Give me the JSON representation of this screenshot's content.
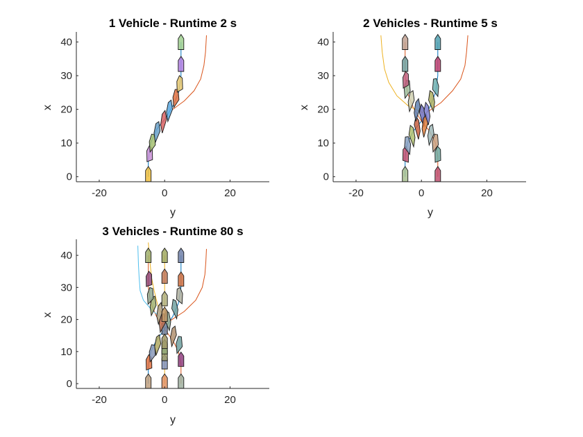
{
  "chart_data": [
    {
      "type": "line",
      "title": "1 Vehicle - Runtime 2 s",
      "xlabel": "y",
      "ylabel": "x",
      "xlim": [
        -27,
        32
      ],
      "ylim": [
        -1.5,
        43
      ],
      "xticks": [
        -20,
        0,
        20
      ],
      "yticks": [
        0,
        10,
        20,
        30,
        40
      ],
      "grid": false,
      "series": [
        {
          "color": "#0072BD",
          "points": [
            [
              -5,
              0
            ],
            [
              -5,
              5
            ],
            [
              -4.3,
              10
            ],
            [
              -2.5,
              14
            ],
            [
              0,
              17
            ],
            [
              2.5,
              21
            ],
            [
              4.3,
              25
            ],
            [
              5,
              30
            ],
            [
              5,
              35
            ],
            [
              5,
              40
            ]
          ]
        },
        {
          "color": "#D95319",
          "points": [
            [
              2.5,
              20
            ],
            [
              6,
              22.5
            ],
            [
              9,
              25.5
            ],
            [
              11,
              29
            ],
            [
              12,
              33
            ],
            [
              12.5,
              37
            ],
            [
              12.8,
              42
            ]
          ]
        }
      ],
      "vehicles": [
        {
          "y": -5,
          "x": 0.8,
          "heading": 0,
          "color": "#f0c040"
        },
        {
          "y": -4.6,
          "x": 7,
          "heading": 5,
          "color": "#c98fd6"
        },
        {
          "y": -3.8,
          "x": 10.5,
          "heading": 18,
          "color": "#a5c070"
        },
        {
          "y": -2.4,
          "x": 13.8,
          "heading": 30,
          "color": "#6aa0c8"
        },
        {
          "y": -0.4,
          "x": 16.8,
          "heading": 38,
          "color": "#d96060"
        },
        {
          "y": 1.4,
          "x": 20.1,
          "heading": 32,
          "color": "#5aa8e0"
        },
        {
          "y": 3.4,
          "x": 23.8,
          "heading": 20,
          "color": "#e07040"
        },
        {
          "y": 4.6,
          "x": 27.8,
          "heading": 8,
          "color": "#e8c870"
        },
        {
          "y": 5,
          "x": 33.5,
          "heading": 0,
          "color": "#b080e0"
        },
        {
          "y": 5,
          "x": 40,
          "heading": 0,
          "color": "#a0d090"
        }
      ]
    },
    {
      "type": "line",
      "title": "2 Vehicles - Runtime 5 s",
      "xlabel": "y",
      "ylabel": "x",
      "xlim": [
        -27,
        32
      ],
      "ylim": [
        -1.5,
        43
      ],
      "xticks": [
        -20,
        0,
        20
      ],
      "yticks": [
        0,
        10,
        20,
        30,
        40
      ],
      "grid": false,
      "series": [
        {
          "color": "#0072BD",
          "points": [
            [
              -5,
              0
            ],
            [
              -5,
              6
            ],
            [
              -4.3,
              10
            ],
            [
              -2.5,
              13.5
            ],
            [
              0,
              16.5
            ],
            [
              2.5,
              20.5
            ],
            [
              4.3,
              25
            ],
            [
              5,
              30
            ],
            [
              5,
              35
            ],
            [
              5,
              40
            ]
          ]
        },
        {
          "color": "#D95319",
          "points": [
            [
              5,
              0
            ],
            [
              5,
              6
            ],
            [
              4.3,
              10
            ],
            [
              2.5,
              13.5
            ],
            [
              0,
              16.5
            ],
            [
              -2.5,
              20.5
            ],
            [
              -4.3,
              25
            ],
            [
              -5,
              30
            ],
            [
              -5,
              35
            ],
            [
              -5,
              40
            ]
          ]
        },
        {
          "color": "#D95319",
          "points": [
            [
              1.5,
              19
            ],
            [
              6,
              22
            ],
            [
              9.5,
              25.5
            ],
            [
              12,
              29
            ],
            [
              13.3,
              33
            ],
            [
              13.8,
              37
            ],
            [
              14.2,
              42
            ]
          ]
        },
        {
          "color": "#EDB120",
          "points": [
            [
              0.5,
              19
            ],
            [
              -4,
              21
            ],
            [
              -7.5,
              24
            ],
            [
              -10,
              28
            ],
            [
              -11.3,
              32
            ],
            [
              -12,
              37
            ],
            [
              -12.4,
              42
            ]
          ]
        }
      ],
      "vehicles": [
        {
          "y": -5,
          "x": 0.8,
          "heading": 0,
          "color": "#a8c090"
        },
        {
          "y": -4.8,
          "x": 6.8,
          "heading": -5,
          "color": "#c05070"
        },
        {
          "y": -4.2,
          "x": 9.8,
          "heading": -18,
          "color": "#8aa0c0"
        },
        {
          "y": -2.8,
          "x": 12.6,
          "heading": -32,
          "color": "#b0c070"
        },
        {
          "y": -1.2,
          "x": 15,
          "heading": -40,
          "color": "#c86040"
        },
        {
          "y": 0.4,
          "x": 18.6,
          "heading": -40,
          "color": "#7070c0"
        },
        {
          "y": 5,
          "x": 0.8,
          "heading": 0,
          "color": "#c05070"
        },
        {
          "y": 5,
          "x": 6.8,
          "heading": 5,
          "color": "#70a8a0"
        },
        {
          "y": 4.2,
          "x": 10.5,
          "heading": 18,
          "color": "#c8a080"
        },
        {
          "y": 2.8,
          "x": 13,
          "heading": 30,
          "color": "#a0b8b8"
        },
        {
          "y": 1,
          "x": 15.6,
          "heading": 40,
          "color": "#e08040"
        },
        {
          "y": 1.8,
          "x": 19.2,
          "heading": -38,
          "color": "#8080d0"
        },
        {
          "y": -1.4,
          "x": 20.3,
          "heading": 38,
          "color": "#6080b0"
        },
        {
          "y": -3.2,
          "x": 23,
          "heading": 30,
          "color": "#d0d0b0"
        },
        {
          "y": -4.4,
          "x": 26.5,
          "heading": 18,
          "color": "#a0c0a0"
        },
        {
          "y": -4.8,
          "x": 29,
          "heading": 8,
          "color": "#c06080"
        },
        {
          "y": -5,
          "x": 33.5,
          "heading": 0,
          "color": "#70a0a0"
        },
        {
          "y": -5,
          "x": 40,
          "heading": 0,
          "color": "#c0a090"
        },
        {
          "y": 3.2,
          "x": 23,
          "heading": -30,
          "color": "#b0b060"
        },
        {
          "y": 4.4,
          "x": 27,
          "heading": -18,
          "color": "#70b0b0"
        },
        {
          "y": 5,
          "x": 33.5,
          "heading": 0,
          "color": "#c04070"
        },
        {
          "y": 5,
          "x": 40,
          "heading": 0,
          "color": "#50a0b0"
        }
      ]
    },
    {
      "type": "line",
      "title": "3 Vehicles - Runtime 80 s",
      "xlabel": "y",
      "ylabel": "x",
      "xlim": [
        -27,
        32
      ],
      "ylim": [
        -1.5,
        45
      ],
      "xticks": [
        -20,
        0,
        20
      ],
      "yticks": [
        0,
        10,
        20,
        30,
        40
      ],
      "grid": false,
      "series": [
        {
          "color": "#0072BD",
          "points": [
            [
              -5,
              0
            ],
            [
              -5,
              6
            ],
            [
              -4.2,
              10
            ],
            [
              -2.5,
              13.5
            ],
            [
              0,
              17
            ],
            [
              2.5,
              21
            ],
            [
              4.2,
              25
            ],
            [
              5,
              30
            ],
            [
              5,
              35
            ],
            [
              5,
              40
            ]
          ]
        },
        {
          "color": "#D95319",
          "points": [
            [
              5,
              0
            ],
            [
              5,
              6
            ],
            [
              4.2,
              10
            ],
            [
              2.5,
              13.5
            ],
            [
              0,
              17
            ],
            [
              -2.5,
              21
            ],
            [
              -4.2,
              25
            ],
            [
              -5,
              30
            ],
            [
              -5,
              35
            ],
            [
              -5,
              40
            ]
          ]
        },
        {
          "color": "#EDB120",
          "points": [
            [
              0,
              0
            ],
            [
              0,
              6
            ],
            [
              0,
              12
            ],
            [
              0,
              17
            ],
            [
              0,
              21
            ],
            [
              0,
              25
            ],
            [
              0,
              30
            ],
            [
              0,
              35
            ],
            [
              0,
              40
            ]
          ]
        },
        {
          "color": "#D95319",
          "points": [
            [
              1.5,
              19.5
            ],
            [
              6,
              22.5
            ],
            [
              9.5,
              26
            ],
            [
              11.5,
              30
            ],
            [
              12.3,
              34
            ],
            [
              12.6,
              38
            ],
            [
              12.8,
              42
            ]
          ]
        },
        {
          "color": "#4DBEEE",
          "points": [
            [
              -0.5,
              20
            ],
            [
              -4,
              23
            ],
            [
              -6.5,
              26
            ],
            [
              -7.5,
              29
            ],
            [
              -7.8,
              33
            ],
            [
              -8,
              37
            ],
            [
              -8.2,
              43
            ]
          ]
        },
        {
          "color": "#EDB120",
          "points": [
            [
              -0.5,
              21
            ],
            [
              -2,
              24
            ],
            [
              -3.2,
              29
            ],
            [
              -4,
              33
            ],
            [
              -4.5,
              38
            ],
            [
              -5,
              44
            ]
          ]
        }
      ],
      "vehicles": [
        {
          "y": -5,
          "x": 0.8,
          "heading": 0,
          "color": "#c0a080"
        },
        {
          "y": -4.8,
          "x": 6.8,
          "heading": 5,
          "color": "#e07040"
        },
        {
          "y": -3.8,
          "x": 10,
          "heading": 18,
          "color": "#8898b8"
        },
        {
          "y": -2.2,
          "x": 12.6,
          "heading": 32,
          "color": "#b0a860"
        },
        {
          "y": 0,
          "x": 0.8,
          "heading": 0,
          "color": "#e09060"
        },
        {
          "y": 0,
          "x": 6.8,
          "heading": 0,
          "color": "#8090b8"
        },
        {
          "y": 0,
          "x": 9.4,
          "heading": 0,
          "color": "#a0a070"
        },
        {
          "y": 0,
          "x": 11.5,
          "heading": 0,
          "color": "#90a878"
        },
        {
          "y": 0,
          "x": 13.2,
          "heading": 0,
          "color": "#a09868"
        },
        {
          "y": 5,
          "x": 0.8,
          "heading": 0,
          "color": "#a0b0a0"
        },
        {
          "y": 5,
          "x": 7.6,
          "heading": 0,
          "color": "#904080"
        },
        {
          "y": 4.4,
          "x": 12.6,
          "heading": 18,
          "color": "#70a0a0"
        },
        {
          "y": 2.6,
          "x": 15.3,
          "heading": 32,
          "color": "#b09070"
        },
        {
          "y": 0,
          "x": 17.6,
          "heading": 0,
          "color": "#7080a0"
        },
        {
          "y": -0.8,
          "x": 19.5,
          "heading": 25,
          "color": "#c07050"
        },
        {
          "y": 1,
          "x": 20.2,
          "heading": -30,
          "color": "#90a890"
        },
        {
          "y": -1.6,
          "x": 22.4,
          "heading": 38,
          "color": "#b0a080"
        },
        {
          "y": -3.6,
          "x": 24.8,
          "heading": 28,
          "color": "#a0b070"
        },
        {
          "y": -4.4,
          "x": 27.8,
          "heading": 15,
          "color": "#90a890"
        },
        {
          "y": -4.8,
          "x": 32.8,
          "heading": 5,
          "color": "#904878"
        },
        {
          "y": -5,
          "x": 40,
          "heading": 0,
          "color": "#a0b070"
        },
        {
          "y": 3.2,
          "x": 23.8,
          "heading": -28,
          "color": "#70a0a0"
        },
        {
          "y": 4.6,
          "x": 27.8,
          "heading": -12,
          "color": "#b0b0a0"
        },
        {
          "y": 5,
          "x": 32.6,
          "heading": 0,
          "color": "#d07040"
        },
        {
          "y": 5,
          "x": 40,
          "heading": 0,
          "color": "#7080a8"
        },
        {
          "y": 0,
          "x": 21.6,
          "heading": 0,
          "color": "#c09868"
        },
        {
          "y": 0,
          "x": 26.5,
          "heading": 0,
          "color": "#b0b080"
        },
        {
          "y": 0,
          "x": 33.5,
          "heading": 0,
          "color": "#c07858"
        },
        {
          "y": 0,
          "x": 40,
          "heading": 0,
          "color": "#a0a860"
        }
      ]
    }
  ]
}
